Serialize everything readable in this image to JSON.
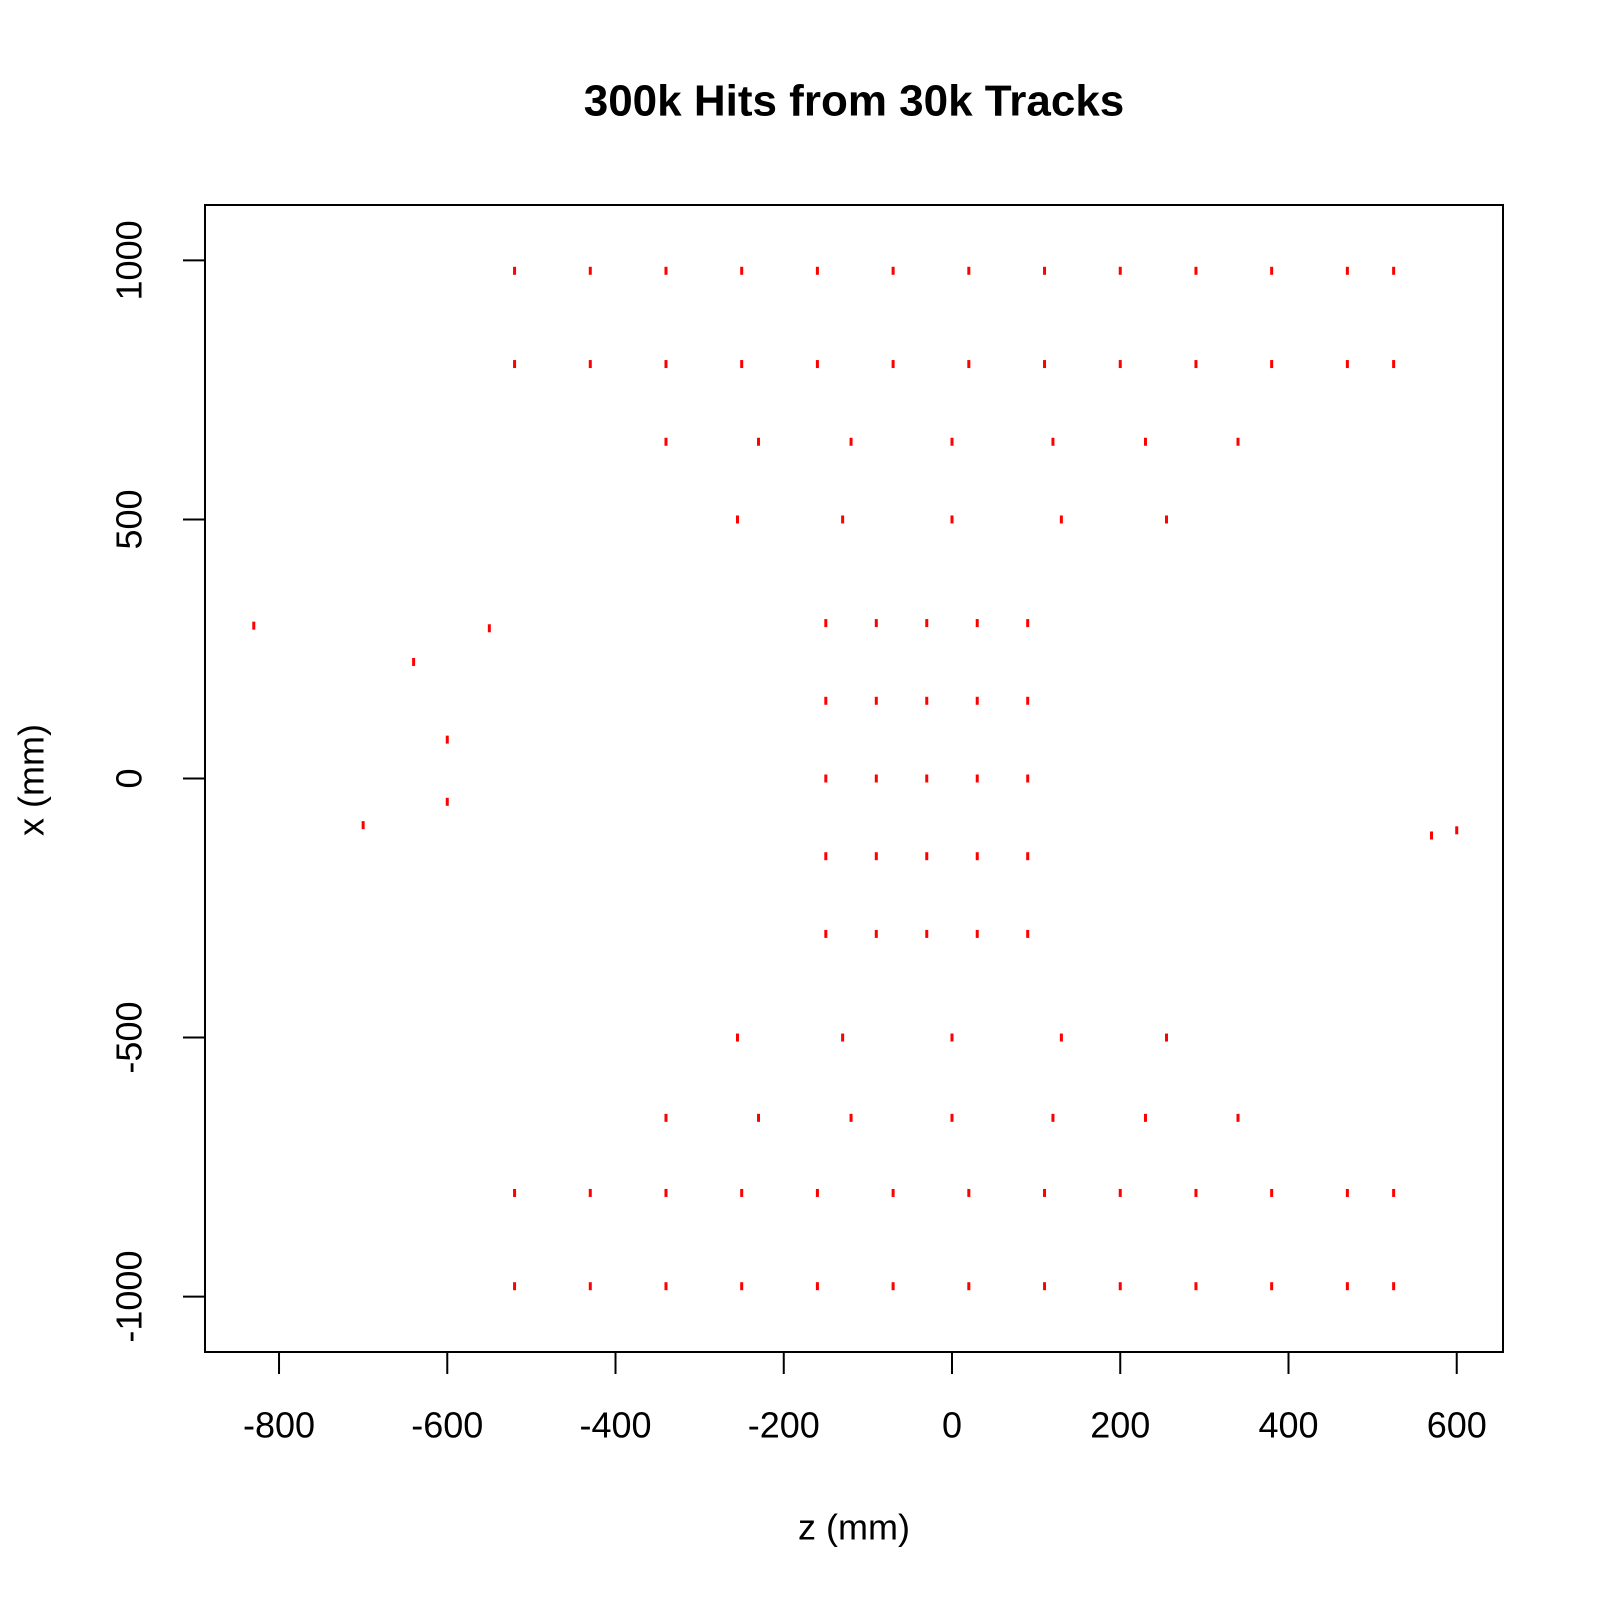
{
  "chart_data": {
    "type": "scatter",
    "title": "300k Hits from 30k Tracks",
    "x_label": "z (mm)",
    "y_label": "x (mm)",
    "color": "#ff0000",
    "xlim": [
      -888,
      655
    ],
    "ylim": [
      -1107,
      1107
    ],
    "xticks": [
      -800,
      -600,
      -400,
      -200,
      0,
      200,
      400,
      600
    ],
    "yticks": [
      -1000,
      -500,
      0,
      500,
      1000
    ],
    "x": [
      -520,
      -430,
      -340,
      -250,
      -160,
      -70,
      20,
      110,
      200,
      290,
      380,
      470,
      525,
      -520,
      -430,
      -340,
      -250,
      -160,
      -70,
      20,
      110,
      200,
      290,
      380,
      470,
      525,
      -520,
      -430,
      -340,
      -250,
      -160,
      -70,
      20,
      110,
      200,
      290,
      380,
      470,
      525,
      -520,
      -430,
      -340,
      -250,
      -160,
      -70,
      20,
      110,
      200,
      290,
      380,
      470,
      525,
      -340,
      -230,
      -120,
      0,
      120,
      230,
      340,
      -340,
      -230,
      -120,
      0,
      120,
      230,
      340,
      -255,
      -130,
      0,
      130,
      255,
      -255,
      -130,
      0,
      130,
      255,
      -150,
      -90,
      -30,
      30,
      90,
      -150,
      -90,
      -30,
      30,
      90,
      -150,
      -90,
      -30,
      30,
      90,
      -150,
      -90,
      -30,
      30,
      90,
      -150,
      -90,
      -30,
      30,
      90,
      -830,
      -640,
      -600,
      -600,
      -700,
      -550,
      570,
      600
    ],
    "y": [
      980,
      980,
      980,
      980,
      980,
      980,
      980,
      980,
      980,
      980,
      980,
      980,
      980,
      800,
      800,
      800,
      800,
      800,
      800,
      800,
      800,
      800,
      800,
      800,
      800,
      800,
      -800,
      -800,
      -800,
      -800,
      -800,
      -800,
      -800,
      -800,
      -800,
      -800,
      -800,
      -800,
      -800,
      -980,
      -980,
      -980,
      -980,
      -980,
      -980,
      -980,
      -980,
      -980,
      -980,
      -980,
      -980,
      -980,
      650,
      650,
      650,
      650,
      650,
      650,
      650,
      -655,
      -655,
      -655,
      -655,
      -655,
      -655,
      -655,
      500,
      500,
      500,
      500,
      500,
      -500,
      -500,
      -500,
      -500,
      -500,
      300,
      300,
      300,
      300,
      300,
      150,
      150,
      150,
      150,
      150,
      0,
      0,
      0,
      0,
      0,
      -150,
      -150,
      -150,
      -150,
      -150,
      -300,
      -300,
      -300,
      -300,
      -300,
      295,
      225,
      75,
      -45,
      -90,
      290,
      -110,
      -100
    ]
  }
}
